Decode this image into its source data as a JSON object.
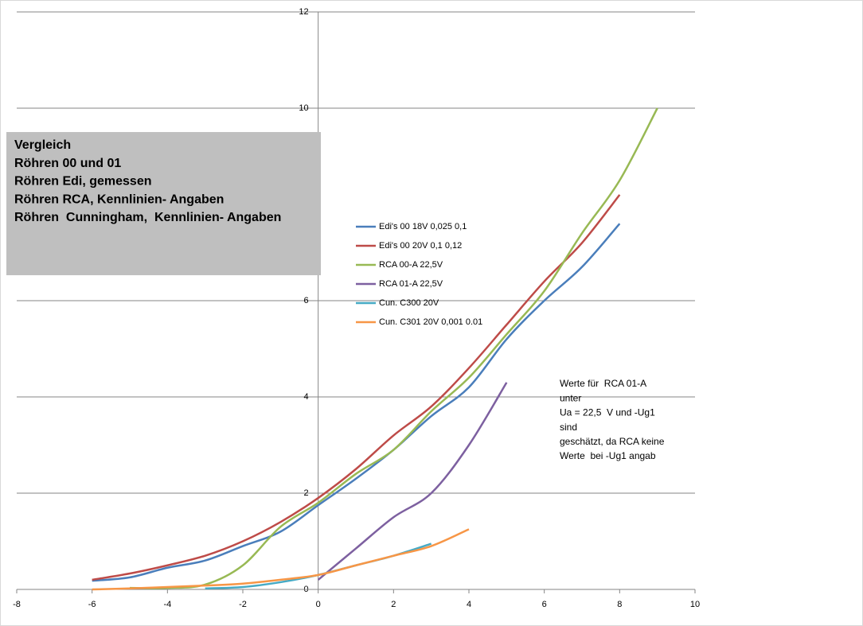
{
  "chart_data": {
    "type": "line",
    "xlim": [
      -8,
      10
    ],
    "xticks": [
      -8,
      -6,
      -4,
      -2,
      0,
      2,
      4,
      6,
      8,
      10
    ],
    "ylim": [
      0,
      12
    ],
    "yticks": [
      0,
      2,
      4,
      6,
      10,
      12
    ],
    "grid": true,
    "text_box": [
      "Vergleich",
      "Röhren 00 und 01",
      "Röhren Edi, gemessen",
      "Röhren RCA, Kennlinien- Angaben",
      "Röhren  Cunningham,  Kennlinien- Angaben"
    ],
    "annotation": [
      "Werte für  RCA 01-A",
      "unter",
      "Ua = 22,5  V und -Ug1",
      "sind",
      "geschätzt, da RCA keine",
      "Werte  bei -Ug1 angab"
    ],
    "series": [
      {
        "name": "Edi's 00 18V 0,025 0,1",
        "color": "#4a7ebb",
        "x": [
          -6,
          -5,
          -4,
          -3,
          -2,
          -1,
          0,
          1,
          2,
          3,
          4,
          5,
          6,
          7,
          8
        ],
        "values": [
          0.18,
          0.25,
          0.45,
          0.6,
          0.9,
          1.2,
          1.75,
          2.3,
          2.9,
          3.6,
          4.2,
          5.2,
          6.0,
          6.7,
          7.6
        ]
      },
      {
        "name": "Edi's 00 20V 0,1 0,12",
        "color": "#be4b48",
        "x": [
          -6,
          -5,
          -4,
          -3,
          -2,
          -1,
          0,
          1,
          2,
          3,
          4,
          5,
          6,
          7,
          8
        ],
        "values": [
          0.2,
          0.33,
          0.5,
          0.7,
          1.0,
          1.4,
          1.9,
          2.5,
          3.2,
          3.8,
          4.6,
          5.5,
          6.4,
          7.2,
          8.2
        ]
      },
      {
        "name": "RCA 00-A 22,5V",
        "color": "#98b954",
        "x": [
          -5,
          -4,
          -3,
          -2,
          -1,
          0,
          1,
          2,
          3,
          4,
          5,
          6,
          7,
          8,
          9
        ],
        "values": [
          0.03,
          0.03,
          0.1,
          0.5,
          1.3,
          1.8,
          2.4,
          2.9,
          3.7,
          4.4,
          5.3,
          6.2,
          7.4,
          8.5,
          10
        ]
      },
      {
        "name": "RCA 01-A 22,5V",
        "color": "#7d60a0",
        "x": [
          0,
          1,
          2,
          3,
          4,
          5
        ],
        "values": [
          0.2,
          0.85,
          1.5,
          2.0,
          3.0,
          4.3
        ]
      },
      {
        "name": "Cun. C300 20V",
        "color": "#46aac5",
        "x": [
          -3,
          -2,
          -1,
          0,
          1,
          2,
          3
        ],
        "values": [
          0.02,
          0.05,
          0.15,
          0.3,
          0.5,
          0.7,
          0.95
        ]
      },
      {
        "name": "Cun. C301 20V 0,001 0.01",
        "color": "#f79646",
        "x": [
          -6,
          -5,
          -4,
          -3,
          -2,
          -1,
          0,
          1,
          2,
          3,
          4
        ],
        "values": [
          0,
          0.02,
          0.05,
          0.08,
          0.12,
          0.2,
          0.3,
          0.5,
          0.7,
          0.9,
          1.25
        ]
      }
    ]
  }
}
